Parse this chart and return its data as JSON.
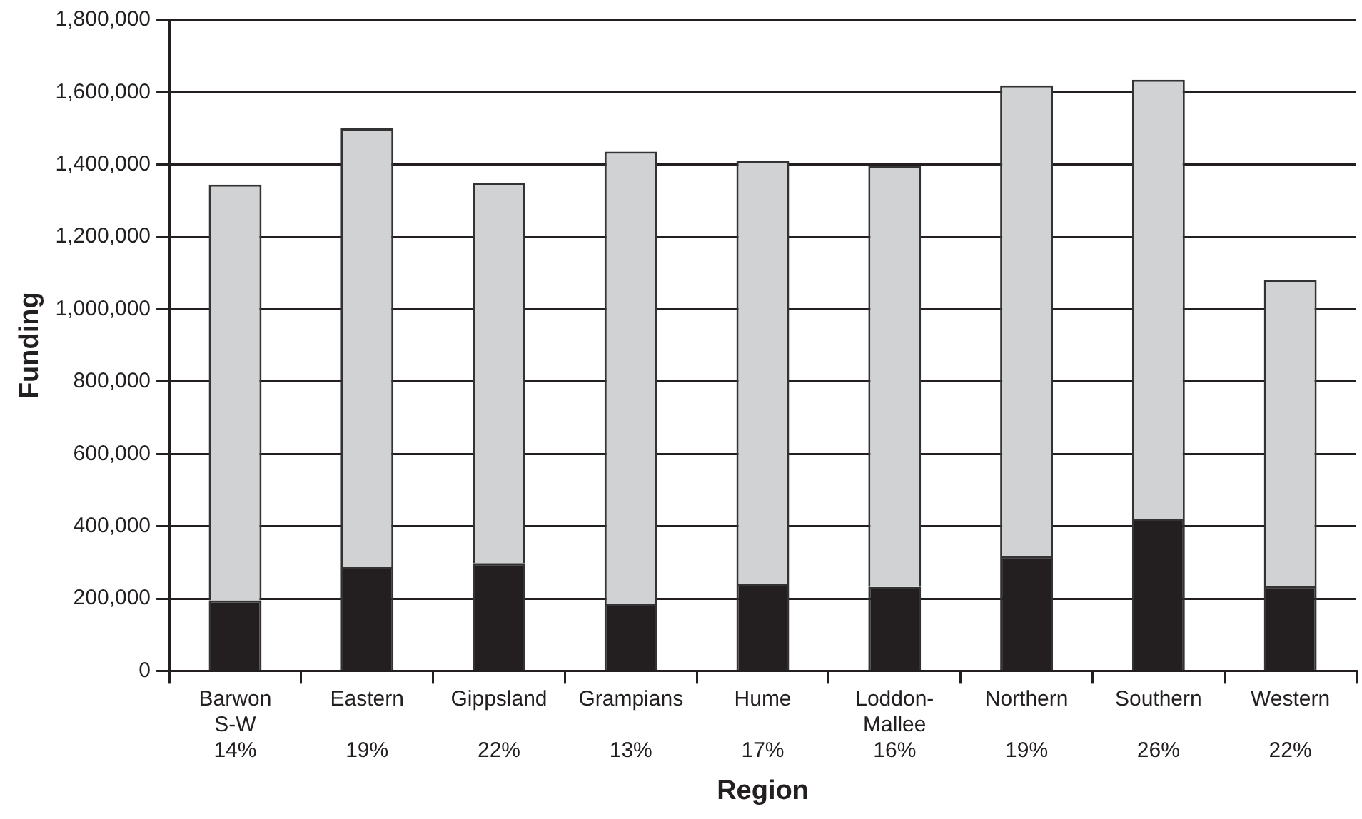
{
  "chart_data": {
    "type": "bar",
    "stacked": true,
    "xlabel": "Region",
    "ylabel": "Funding",
    "categories": [
      "Barwon\nS-W\n14%",
      "Eastern\n19%",
      "Gippsland\n22%",
      "Grampians\n13%",
      "Hume\n17%",
      "Loddon-\nMallee\n16%",
      "Northern\n19%",
      "Southern\n26%",
      "Western\n22%"
    ],
    "series": [
      {
        "color": "#231f20",
        "values": [
          195000,
          287000,
          298000,
          186000,
          241000,
          232000,
          318000,
          421000,
          235000
        ]
      },
      {
        "color": "#d1d2d4",
        "values": [
          1150000,
          1213000,
          1052000,
          1250000,
          1170000,
          1165000,
          1301000,
          1214000,
          847000
        ]
      }
    ],
    "ylim": [
      0,
      1800000
    ],
    "yticks": [
      0,
      {
        "value": 200000,
        "label": "200,000"
      },
      {
        "value": 400000,
        "label": "400,000"
      },
      {
        "value": 600000,
        "label": "600,000"
      },
      {
        "value": 800000,
        "label": "800,000"
      },
      {
        "value": 1000000,
        "label": "1,000,000"
      },
      {
        "value": 1200000,
        "label": "1,200,000"
      },
      {
        "value": 1400000,
        "label": "1,400,000"
      },
      {
        "value": 1600000,
        "label": "1,600,000"
      },
      {
        "value": 1800000,
        "label": "1,800,000"
      }
    ],
    "grid": "y",
    "legend": false
  }
}
